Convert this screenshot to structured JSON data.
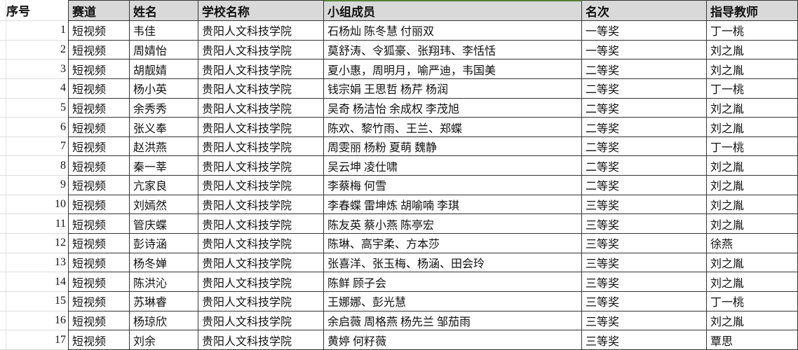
{
  "accent": {
    "selected_header_color": "#538135",
    "header_bg": "#d9d9d9",
    "grid_border": "#353535"
  },
  "table": {
    "columns": [
      {
        "key": "num",
        "label": "序号"
      },
      {
        "key": "track",
        "label": "赛道"
      },
      {
        "key": "name",
        "label": "姓名"
      },
      {
        "key": "school",
        "label": "学校名称"
      },
      {
        "key": "members",
        "label": "小组成员"
      },
      {
        "key": "rank",
        "label": "名次"
      },
      {
        "key": "teacher",
        "label": "指导教师"
      }
    ],
    "rows": [
      {
        "num": "1",
        "track": "短视频",
        "name": "韦佳",
        "school": "贵阳人文科技学院",
        "members": "石杨灿 陈冬慧 付丽双",
        "rank": "一等奖",
        "teacher": "丁一桃"
      },
      {
        "num": "2",
        "track": "短视频",
        "name": "周婧怡",
        "school": "贵阳人文科技学院",
        "members": "莫舒涛、令狐豪、张翔玮、李恬恬",
        "rank": "一等奖",
        "teacher": "刘之胤"
      },
      {
        "num": "3",
        "track": "短视频",
        "name": "胡靓婧",
        "school": "贵阳人文科技学院",
        "members": "夏小惠，周明月，喻严迪，韦国美",
        "rank": "二等奖",
        "teacher": "刘之胤"
      },
      {
        "num": "4",
        "track": "短视频",
        "name": "杨小英",
        "school": "贵阳人文科技学院",
        "members": "钱宗娟 王思哲 杨芹 杨润",
        "rank": "二等奖",
        "teacher": "丁一桃"
      },
      {
        "num": "5",
        "track": "短视频",
        "name": "余秀秀",
        "school": "贵阳人文科技学院",
        "members": "吴奇 杨洁怡 余成权 李茂旭",
        "rank": "二等奖",
        "teacher": "刘之胤"
      },
      {
        "num": "6",
        "track": "短视频",
        "name": "张义奉",
        "school": "贵阳人文科技学院",
        "members": "陈欢、黎竹雨、王兰、郑蝶",
        "rank": "二等奖",
        "teacher": "刘之胤"
      },
      {
        "num": "7",
        "track": "短视频",
        "name": "赵洪燕",
        "school": "贵阳人文科技学院",
        "members": "周雯丽 杨粉 夏萌 魏静",
        "rank": "二等奖",
        "teacher": "丁一桃"
      },
      {
        "num": "8",
        "track": "短视频",
        "name": "秦一莘",
        "school": "贵阳人文科技学院",
        "members": "吴云坤 凌仕啸",
        "rank": "二等奖",
        "teacher": "刘之胤"
      },
      {
        "num": "9",
        "track": "短视频",
        "name": "亢家良",
        "school": "贵阳人文科技学院",
        "members": "李蔡梅 何雪",
        "rank": "二等奖",
        "teacher": "刘之胤"
      },
      {
        "num": "10",
        "track": "短视频",
        "name": "刘嫣然",
        "school": "贵阳人文科技学院",
        "members": "李春蝶 雷坤炼 胡喻喃 李琪",
        "rank": "三等奖",
        "teacher": "刘之胤"
      },
      {
        "num": "11",
        "track": "短视频",
        "name": "管庆蝶",
        "school": "贵阳人文科技学院",
        "members": "陈友英 蔡小燕 陈亭宏",
        "rank": "三等奖",
        "teacher": "刘之胤"
      },
      {
        "num": "12",
        "track": "短视频",
        "name": "彭诗涵",
        "school": "贵阳人文科技学院",
        "members": "陈琳、高宇柔、方本莎",
        "rank": "三等奖",
        "teacher": "徐燕"
      },
      {
        "num": "13",
        "track": "短视频",
        "name": "杨冬婵",
        "school": "贵阳人文科技学院",
        "members": "张喜洋、张玉梅、杨涵、田会玲",
        "rank": "三等奖",
        "teacher": "刘之胤"
      },
      {
        "num": "14",
        "track": "短视频",
        "name": "陈洪沁",
        "school": "贵阳人文科技学院",
        "members": "陈鲜 顾子会",
        "rank": "三等奖",
        "teacher": "刘之胤"
      },
      {
        "num": "15",
        "track": "短视频",
        "name": "苏琳睿",
        "school": "贵阳人文科技学院",
        "members": "王娜娜、彭光慧",
        "rank": "三等奖",
        "teacher": "丁一桃"
      },
      {
        "num": "16",
        "track": "短视频",
        "name": "杨琼欣",
        "school": "贵阳人文科技学院",
        "members": "余启薇 周格燕 杨先兰 邹茄雨",
        "rank": "三等奖",
        "teacher": "刘之胤"
      },
      {
        "num": "17",
        "track": "短视频",
        "name": "刘余",
        "school": "贵阳人文科技学院",
        "members": "黄婷 何籽薇",
        "rank": "三等奖",
        "teacher": "覃思"
      }
    ]
  }
}
